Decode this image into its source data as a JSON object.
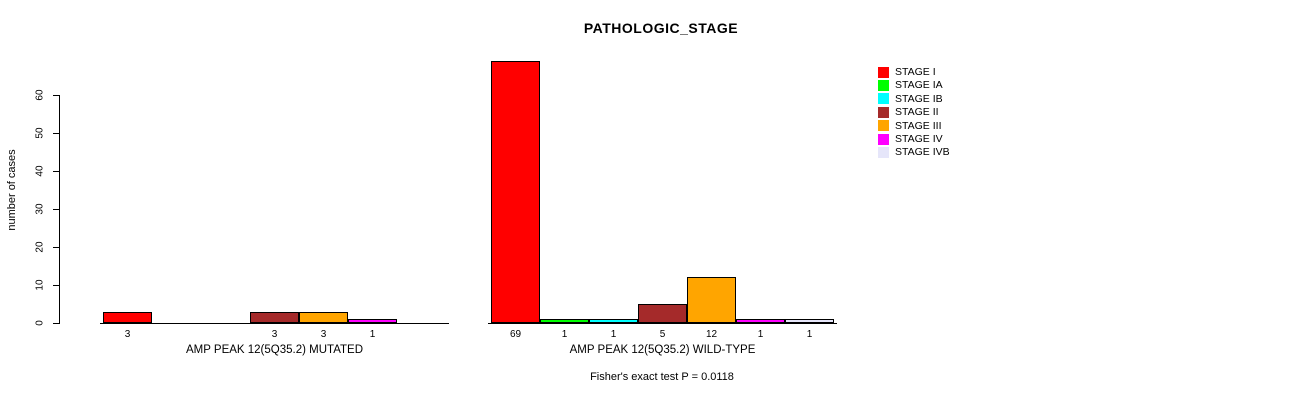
{
  "title": "PATHOLOGIC_STAGE",
  "y_axis": {
    "label": "number of cases",
    "ticks": [
      0,
      10,
      20,
      30,
      40,
      50,
      60
    ]
  },
  "annotation": "Fisher's exact test P = 0.0118",
  "chart_data": {
    "type": "bar",
    "title": "PATHOLOGIC_STAGE",
    "xlabel": "",
    "ylabel": "number of cases",
    "ylim": [
      0,
      60
    ],
    "yticks": [
      0,
      10,
      20,
      30,
      40,
      50,
      60
    ],
    "grid": false,
    "legend_position": "right",
    "categories": [
      "STAGE I",
      "STAGE IA",
      "STAGE IB",
      "STAGE II",
      "STAGE III",
      "STAGE IV",
      "STAGE IVB"
    ],
    "colors": [
      "#FF0000",
      "#00FF00",
      "#00FFFF",
      "#A52A2A",
      "#FFA500",
      "#FF00FF",
      "#E6E6FA"
    ],
    "groups": [
      {
        "label": "AMP PEAK 12(5Q35.2) MUTATED",
        "values": [
          3,
          0,
          0,
          3,
          3,
          1,
          0
        ]
      },
      {
        "label": "AMP PEAK 12(5Q35.2) WILD-TYPE",
        "values": [
          69,
          1,
          1,
          5,
          12,
          1,
          1
        ]
      }
    ],
    "value_labels": "shown under each nonzero bar",
    "annotation": "Fisher's exact test P = 0.0118"
  }
}
